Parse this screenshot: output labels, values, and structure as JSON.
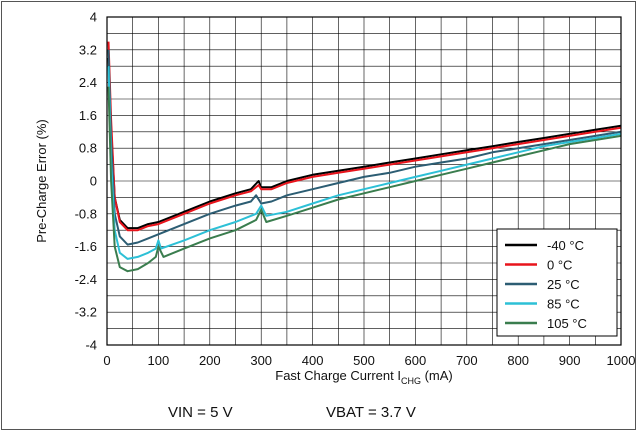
{
  "chart_data": {
    "type": "line",
    "xlabel_main": "Fast Charge Current I",
    "xlabel_sub": "CHG",
    "xlabel_unit": " (mA)",
    "ylabel": "Pre-Charge Error (%)",
    "xlim": [
      0,
      1000
    ],
    "ylim": [
      -4,
      4
    ],
    "x_ticks": [
      "0",
      "100",
      "200",
      "300",
      "400",
      "500",
      "600",
      "700",
      "800",
      "900",
      "1000"
    ],
    "y_ticks": [
      "4",
      "3.2",
      "2.4",
      "1.6",
      "0.8",
      "0",
      "-0.8",
      "-1.6",
      "-2.4",
      "-3.2",
      "-4"
    ],
    "y_tick_values": [
      4,
      3.2,
      2.4,
      1.6,
      0.8,
      0,
      -0.8,
      -1.6,
      -2.4,
      -3.2,
      -4
    ],
    "y_minor_step": 0.4,
    "x_grid_step": 50,
    "grid": true,
    "legend_position": "bottom-right",
    "series": [
      {
        "name": "-40 °C",
        "color": "#000000",
        "x": [
          3,
          8,
          15,
          25,
          40,
          60,
          80,
          100,
          150,
          200,
          250,
          280,
          295,
          300,
          320,
          350,
          400,
          450,
          500,
          550,
          600,
          650,
          700,
          750,
          800,
          850,
          900,
          950,
          1000
        ],
        "y": [
          3.0,
          1.3,
          -0.4,
          -0.95,
          -1.15,
          -1.15,
          -1.05,
          -1.0,
          -0.75,
          -0.5,
          -0.3,
          -0.2,
          0.0,
          -0.15,
          -0.15,
          0.0,
          0.15,
          0.25,
          0.35,
          0.45,
          0.55,
          0.65,
          0.75,
          0.85,
          0.95,
          1.05,
          1.15,
          1.25,
          1.35
        ]
      },
      {
        "name": "0 °C",
        "color": "#e8141c",
        "x": [
          3,
          8,
          15,
          25,
          40,
          60,
          80,
          100,
          150,
          200,
          250,
          280,
          295,
          300,
          320,
          350,
          400,
          450,
          500,
          550,
          600,
          650,
          700,
          750,
          800,
          850,
          900,
          950,
          1000
        ],
        "y": [
          3.4,
          1.5,
          -0.4,
          -1.0,
          -1.2,
          -1.2,
          -1.1,
          -1.05,
          -0.8,
          -0.55,
          -0.35,
          -0.25,
          -0.1,
          -0.2,
          -0.2,
          -0.05,
          0.1,
          0.2,
          0.3,
          0.4,
          0.5,
          0.6,
          0.7,
          0.8,
          0.9,
          1.0,
          1.1,
          1.2,
          1.3
        ]
      },
      {
        "name": "25 °C",
        "color": "#2c5d73",
        "x": [
          3,
          8,
          15,
          25,
          40,
          60,
          80,
          100,
          150,
          200,
          250,
          280,
          290,
          300,
          320,
          350,
          400,
          450,
          500,
          550,
          600,
          650,
          700,
          750,
          800,
          850,
          900,
          950,
          1000
        ],
        "y": [
          3.2,
          1.0,
          -0.8,
          -1.35,
          -1.55,
          -1.5,
          -1.4,
          -1.3,
          -1.05,
          -0.8,
          -0.6,
          -0.5,
          -0.35,
          -0.55,
          -0.5,
          -0.35,
          -0.2,
          -0.05,
          0.1,
          0.2,
          0.35,
          0.45,
          0.55,
          0.7,
          0.8,
          0.9,
          1.0,
          1.1,
          1.2
        ]
      },
      {
        "name": "85 °C",
        "color": "#2dc0d6",
        "x": [
          3,
          8,
          15,
          25,
          40,
          60,
          80,
          95,
          100,
          105,
          150,
          200,
          250,
          290,
          300,
          310,
          350,
          400,
          450,
          500,
          550,
          600,
          650,
          700,
          750,
          800,
          850,
          900,
          950,
          1000
        ],
        "y": [
          2.8,
          0.5,
          -1.2,
          -1.75,
          -1.9,
          -1.85,
          -1.75,
          -1.65,
          -1.45,
          -1.65,
          -1.45,
          -1.2,
          -1.0,
          -0.8,
          -0.6,
          -0.85,
          -0.75,
          -0.55,
          -0.35,
          -0.2,
          -0.05,
          0.1,
          0.25,
          0.4,
          0.55,
          0.7,
          0.85,
          0.95,
          1.05,
          1.15
        ]
      },
      {
        "name": "105 °C",
        "color": "#3a7d4e",
        "x": [
          3,
          8,
          15,
          25,
          40,
          60,
          80,
          95,
          100,
          110,
          150,
          200,
          250,
          290,
          300,
          310,
          350,
          400,
          450,
          500,
          550,
          600,
          650,
          700,
          750,
          800,
          850,
          900,
          950,
          1000
        ],
        "y": [
          2.3,
          0.0,
          -1.6,
          -2.1,
          -2.2,
          -2.15,
          -2.0,
          -1.85,
          -1.6,
          -1.85,
          -1.65,
          -1.4,
          -1.2,
          -0.95,
          -0.7,
          -1.0,
          -0.85,
          -0.65,
          -0.45,
          -0.3,
          -0.15,
          0.0,
          0.15,
          0.3,
          0.45,
          0.6,
          0.75,
          0.9,
          1.0,
          1.1
        ]
      }
    ]
  },
  "caption": {
    "vin": "VIN = 5 V",
    "vbat": "VBAT = 3.7 V"
  }
}
